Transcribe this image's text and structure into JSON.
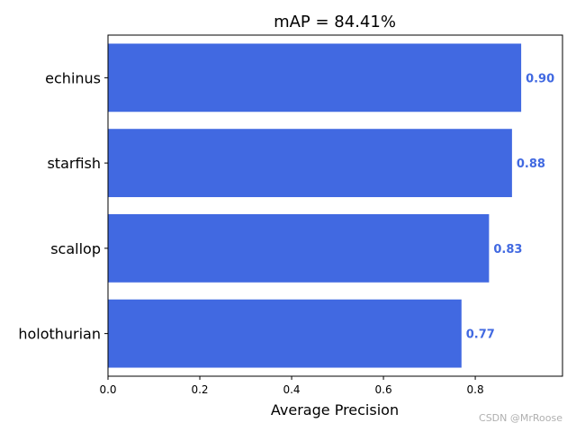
{
  "chart_data": {
    "type": "bar",
    "orientation": "horizontal",
    "title": "mAP = 84.41%",
    "categories": [
      "echinus",
      "starfish",
      "scallop",
      "holothurian"
    ],
    "values": [
      0.9,
      0.88,
      0.83,
      0.77
    ],
    "value_labels": [
      "0.90",
      "0.88",
      "0.83",
      "0.77"
    ],
    "xlabel": "Average Precision",
    "ylabel": "",
    "xlim": [
      0,
      0.99
    ],
    "xticks": [
      0.0,
      0.2,
      0.4,
      0.6,
      0.8
    ],
    "xtick_labels": [
      "0.0",
      "0.2",
      "0.4",
      "0.6",
      "0.8"
    ],
    "bar_color": "#4169e1",
    "label_color": "#4169e1",
    "grid": false,
    "legend": "none"
  },
  "watermark": "CSDN @MrRoose"
}
